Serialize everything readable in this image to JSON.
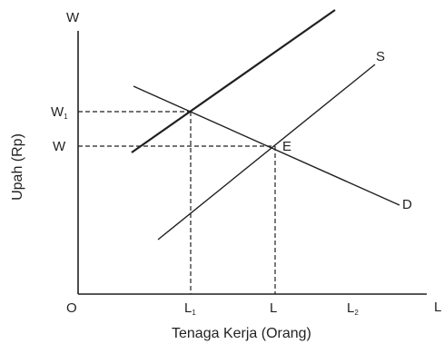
{
  "diagram": {
    "axis_y_top_label": "W",
    "axis_x_end_label": "L",
    "origin_label": "O",
    "y_axis_title": "Upah (Rp)",
    "x_axis_title": "Tenaga Kerja (Orang)",
    "y_ticks": {
      "w1_main": "W",
      "w1_sub": "1",
      "w": "W"
    },
    "x_ticks": {
      "l1_main": "L",
      "l1_sub": "1",
      "l": "L",
      "l2_main": "L",
      "l2_sub": "2"
    },
    "curves": {
      "supply": "S",
      "demand": "D"
    },
    "points": {
      "equilibrium": "E"
    },
    "line_color": "#231f20"
  }
}
